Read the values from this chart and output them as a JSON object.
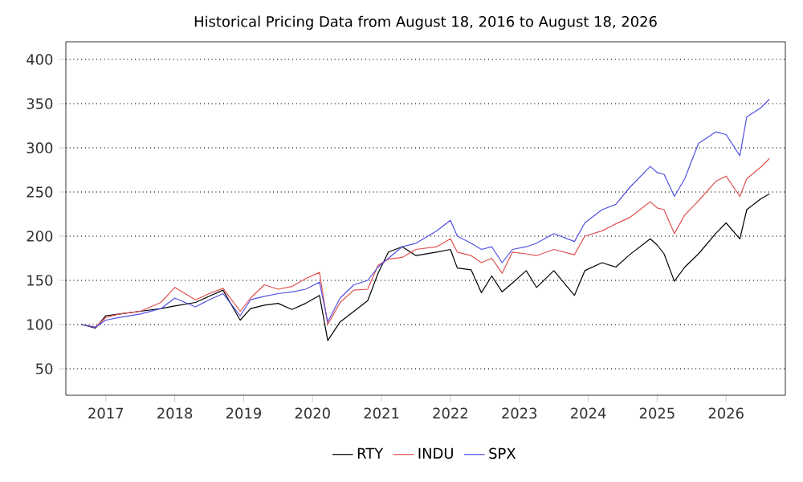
{
  "chart_data": {
    "type": "line",
    "title": "Historical Pricing Data from August 18, 2016 to August 18, 2026",
    "x": [
      2016.65,
      2016.85,
      2017.0,
      2017.2,
      2017.5,
      2017.8,
      2018.0,
      2018.3,
      2018.5,
      2018.7,
      2018.95,
      2019.1,
      2019.3,
      2019.5,
      2019.7,
      2019.9,
      2020.1,
      2020.22,
      2020.4,
      2020.6,
      2020.8,
      2020.95,
      2021.1,
      2021.3,
      2021.5,
      2021.8,
      2022.0,
      2022.1,
      2022.3,
      2022.45,
      2022.6,
      2022.75,
      2022.9,
      2023.1,
      2023.25,
      2023.5,
      2023.8,
      2023.95,
      2024.2,
      2024.4,
      2024.6,
      2024.9,
      2025.0,
      2025.1,
      2025.25,
      2025.4,
      2025.6,
      2025.85,
      2026.0,
      2026.2,
      2026.3,
      2026.5,
      2026.63
    ],
    "series": [
      {
        "name": "RTY",
        "color": "#000000",
        "values": [
          100,
          96,
          110,
          112,
          115,
          118,
          121,
          125,
          132,
          139,
          105,
          118,
          122,
          124,
          117,
          124,
          133,
          82,
          103,
          115,
          127,
          158,
          182,
          188,
          178,
          182,
          185,
          164,
          162,
          136,
          155,
          137,
          147,
          161,
          142,
          161,
          133,
          161,
          170,
          165,
          179,
          197,
          190,
          180,
          149,
          165,
          180,
          203,
          215,
          197,
          230,
          242,
          248
        ]
      },
      {
        "name": "INDU",
        "color": "#e05050",
        "values": [
          100,
          97,
          108,
          112,
          115,
          125,
          142,
          128,
          135,
          141,
          115,
          130,
          145,
          140,
          143,
          152,
          159,
          100,
          125,
          139,
          140,
          167,
          174,
          176,
          185,
          188,
          197,
          182,
          178,
          170,
          175,
          158,
          182,
          180,
          178,
          185,
          179,
          200,
          206,
          214,
          221,
          239,
          232,
          230,
          203,
          224,
          240,
          262,
          268,
          245,
          265,
          278,
          288
        ]
      },
      {
        "name": "SPX",
        "color": "#5050e0",
        "values": [
          100,
          97,
          105,
          108,
          112,
          118,
          130,
          120,
          128,
          135,
          110,
          128,
          132,
          135,
          137,
          140,
          148,
          103,
          130,
          145,
          150,
          165,
          175,
          188,
          192,
          206,
          218,
          200,
          192,
          185,
          188,
          170,
          185,
          188,
          192,
          203,
          194,
          215,
          230,
          236,
          255,
          279,
          272,
          270,
          245,
          265,
          305,
          318,
          315,
          291,
          335,
          345,
          355
        ]
      }
    ],
    "xlim": [
      2016.42,
      2026.86
    ],
    "ylim": [
      20,
      420
    ],
    "xticks": [
      2017,
      2018,
      2019,
      2020,
      2021,
      2022,
      2023,
      2024,
      2025,
      2026
    ],
    "yticks": [
      50,
      100,
      150,
      200,
      250,
      300,
      350,
      400
    ],
    "grid": "y",
    "legend": "bottom",
    "marker": "none",
    "line_style": "solid"
  }
}
